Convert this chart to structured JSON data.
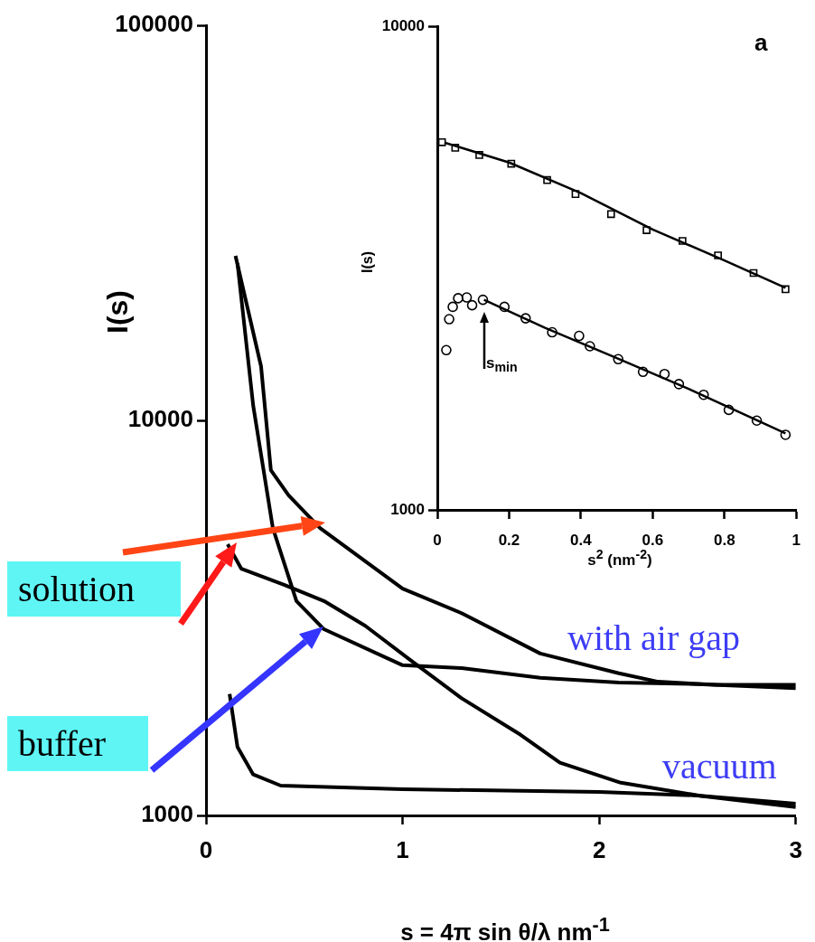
{
  "chart_data": [
    {
      "type": "line",
      "xlabel": "s = 4π sin θ/λ nm$^{-1}$",
      "ylabel": "I(s)",
      "log": "y",
      "xlim": [
        0,
        3
      ],
      "xticks": [
        0,
        1,
        2,
        3
      ],
      "ylim": [
        1000,
        100000
      ],
      "yticks": [
        1000,
        10000,
        100000
      ],
      "annotations": [
        "solution",
        "buffer",
        "with air gap",
        "vacuum"
      ],
      "series": [
        {
          "color": "#000000",
          "x": [
            0.15,
            0.28,
            0.33,
            0.42,
            0.58,
            1.0,
            1.3,
            1.7,
            2.1,
            2.3,
            2.6,
            3.0
          ],
          "values": [
            26100,
            13700,
            7480,
            6460,
            5340,
            3750,
            3250,
            2570,
            2290,
            2180,
            2140,
            2140
          ]
        },
        {
          "color": "#000000",
          "x": [
            0.16,
            0.24,
            0.34,
            0.46,
            0.6,
            1.0,
            1.3,
            1.7,
            2.1,
            2.5,
            3.0
          ],
          "values": [
            25000,
            10900,
            5340,
            3490,
            2960,
            2400,
            2360,
            2230,
            2170,
            2150,
            2100
          ]
        },
        {
          "color": "#000000",
          "x": [
            0.11,
            0.18,
            0.4,
            0.6,
            0.81,
            1.05,
            1.3,
            1.6,
            1.8,
            2.11,
            2.52,
            3.0
          ],
          "values": [
            4860,
            4210,
            3830,
            3490,
            3020,
            2450,
            1980,
            1600,
            1360,
            1210,
            1120,
            1050
          ]
        },
        {
          "color": "#000000",
          "x": [
            0.12,
            0.16,
            0.24,
            0.38,
            1.0,
            2.0,
            2.5,
            3.0
          ],
          "values": [
            2030,
            1490,
            1270,
            1190,
            1165,
            1147,
            1123,
            1071
          ]
        }
      ]
    },
    {
      "type": "scatter",
      "xlabel": "s$^{2}$ (nm$^{-2}$)",
      "ylabel": "I(s)",
      "log": "y",
      "xlim": [
        0,
        1
      ],
      "xticks": [
        0,
        0.2,
        0.4,
        0.6,
        0.8,
        1
      ],
      "ylim": [
        1000,
        10000
      ],
      "yticks": [
        1000,
        10000
      ],
      "annotations": [
        "a",
        "s$_{min}$"
      ],
      "series": [
        {
          "color": "#000000",
          "marker": "square",
          "x": [
            0.013,
            0.05,
            0.117,
            0.206,
            0.306,
            0.385,
            0.484,
            0.583,
            0.683,
            0.782,
            0.881,
            0.97
          ],
          "values": [
            5760,
            5610,
            5420,
            5200,
            4810,
            4500,
            4090,
            3790,
            3600,
            3360,
            3090,
            2860
          ]
        },
        {
          "color": "#000000",
          "marker": "circle",
          "x": [
            0.025,
            0.033,
            0.043,
            0.058,
            0.082,
            0.097,
            0.127,
            0.187,
            0.246,
            0.32,
            0.395,
            0.425,
            0.504,
            0.573,
            0.633,
            0.673,
            0.742,
            0.812,
            0.89,
            0.97
          ],
          "values": [
            2140,
            2480,
            2630,
            2740,
            2750,
            2650,
            2720,
            2630,
            2490,
            2330,
            2290,
            2180,
            2050,
            1930,
            1910,
            1820,
            1730,
            1610,
            1530,
            1430
          ]
        },
        {
          "type": "line",
          "color": "#000000",
          "x": [
            0.02,
            0.2,
            0.4,
            0.6,
            0.8,
            0.97
          ],
          "values": [
            5750,
            5230,
            4520,
            3800,
            3280,
            2880
          ]
        },
        {
          "type": "line",
          "color": "#000000",
          "x": [
            0.13,
            0.3,
            0.5,
            0.7,
            0.97
          ],
          "values": [
            2720,
            2380,
            2060,
            1780,
            1440
          ]
        }
      ]
    }
  ]
}
